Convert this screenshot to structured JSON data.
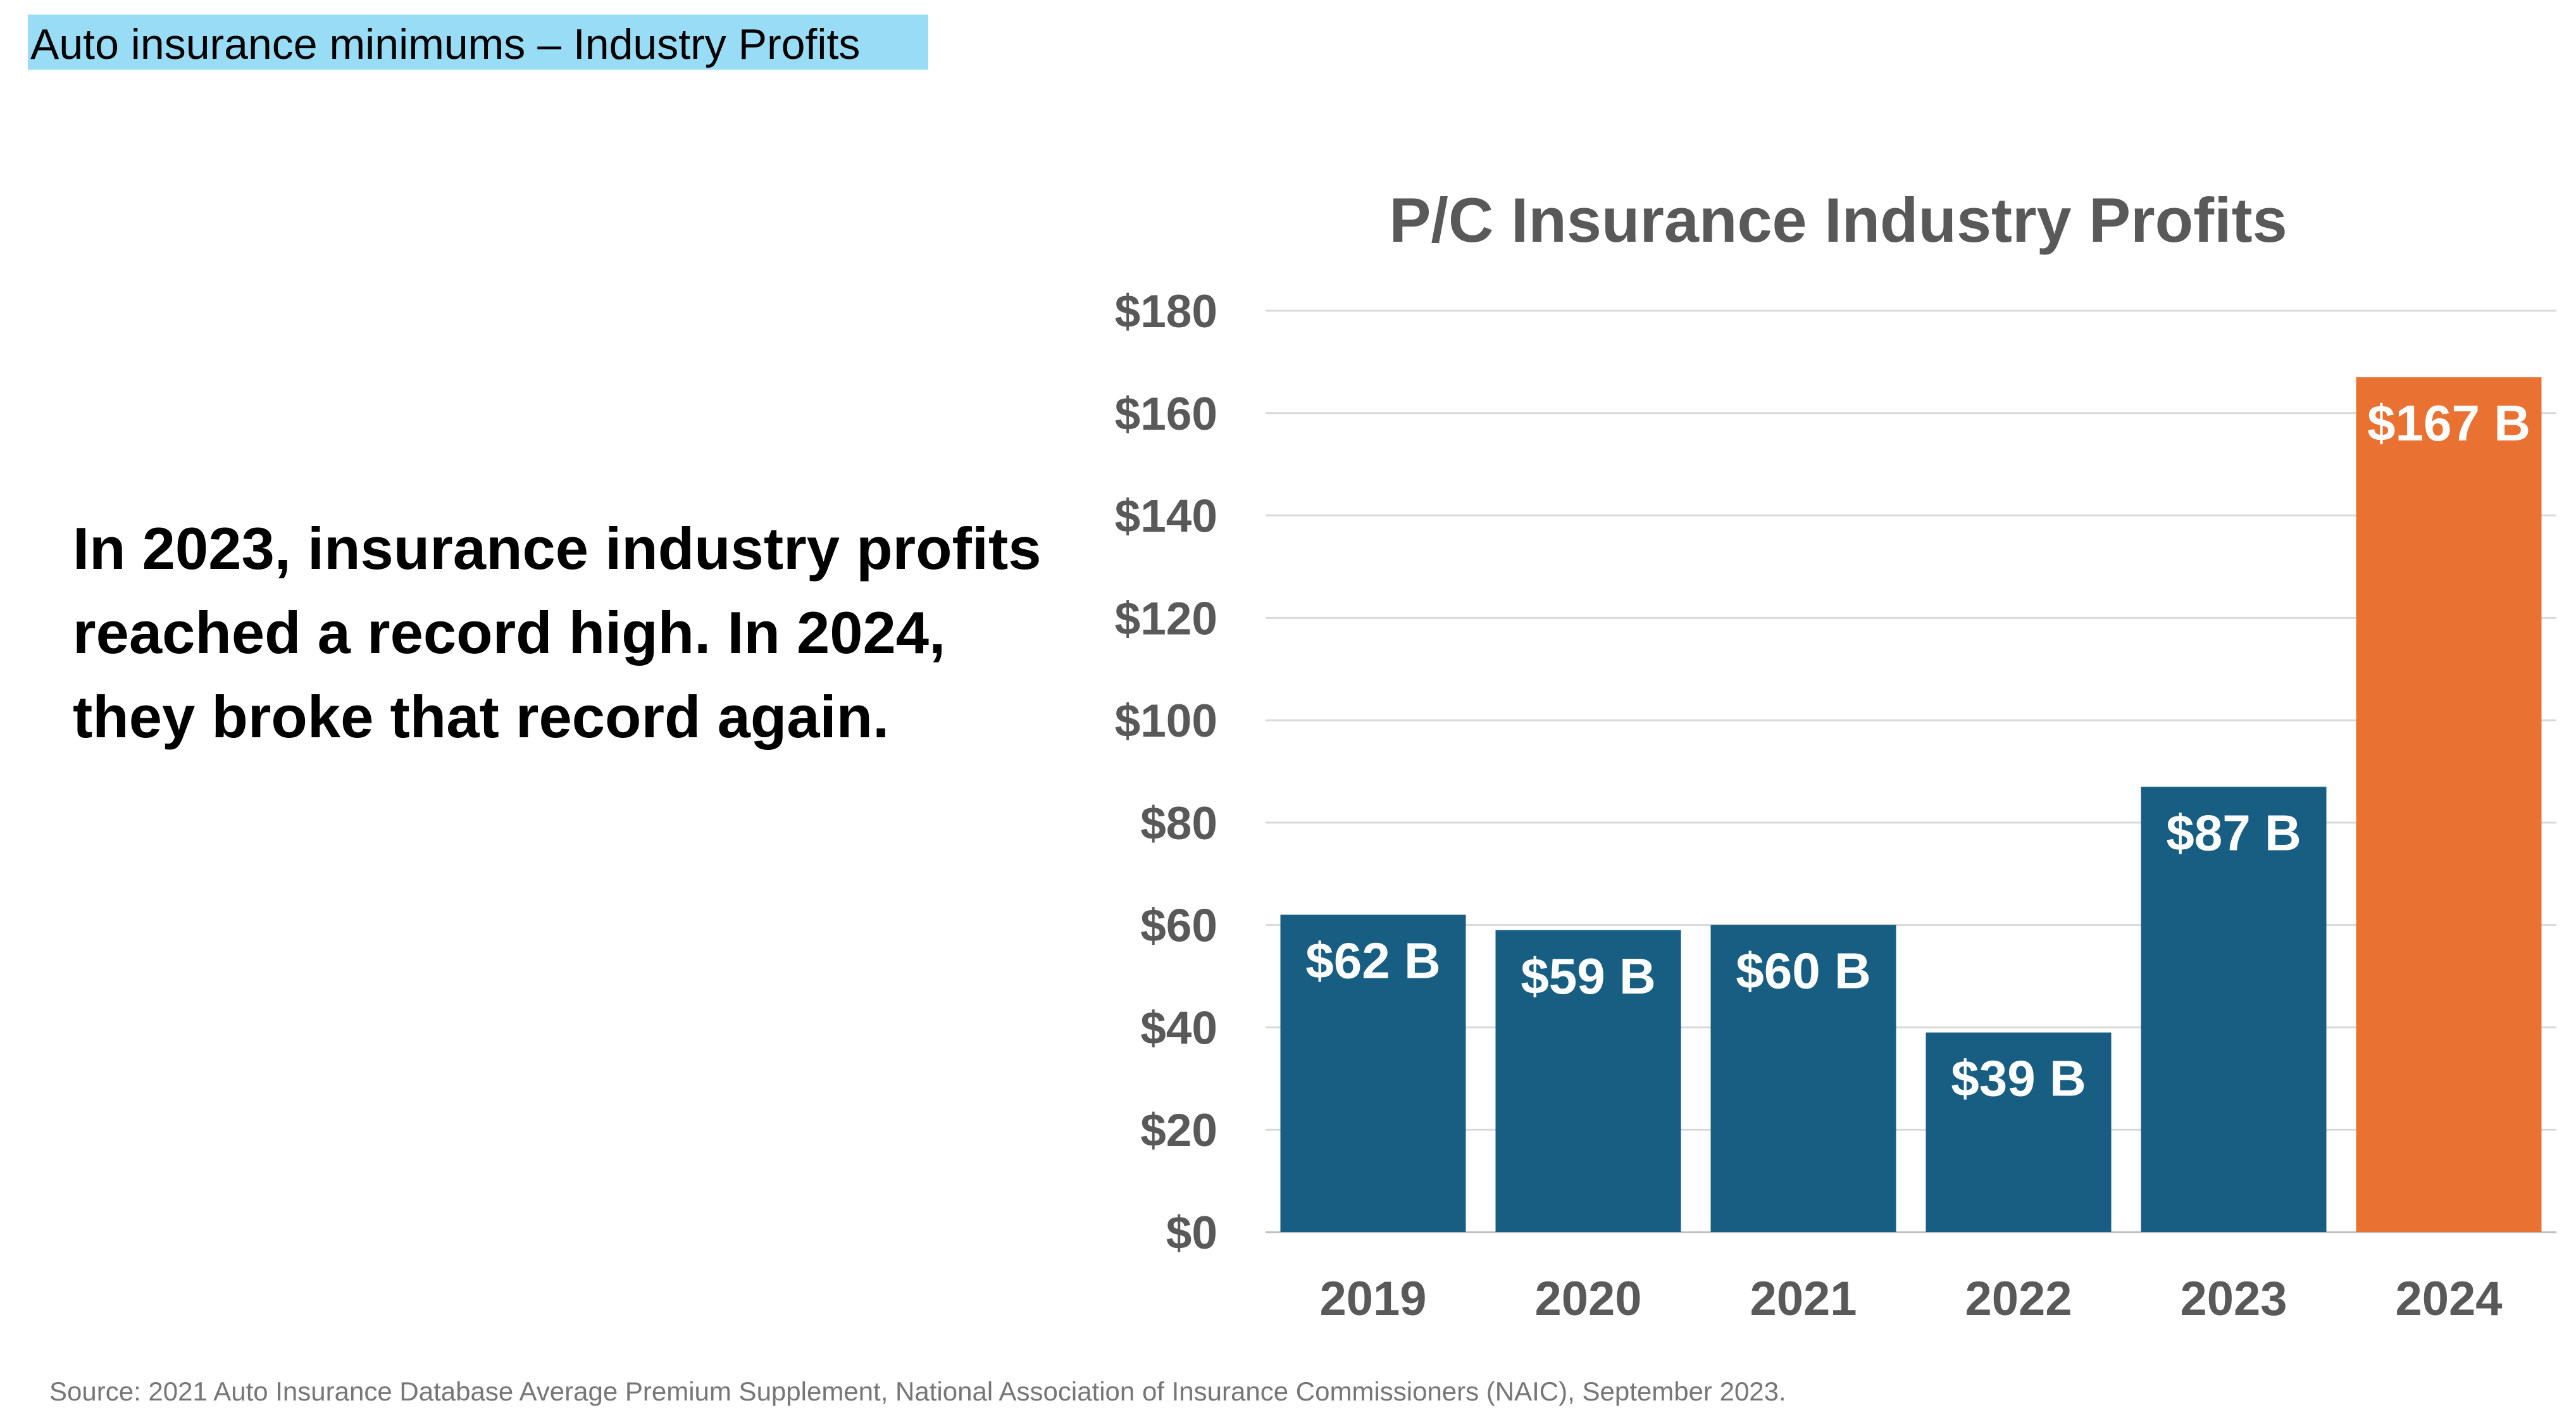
{
  "header": {
    "title": "Auto insurance minimums – Industry Profits"
  },
  "body_text": "In 2023, insurance industry profits reached a record high. In 2024, they broke that record again.",
  "source": "Source: 2021 Auto Insurance Database Average Premium Supplement, National Association of Insurance Commissioners (NAIC), September 2023.",
  "chart_data": {
    "type": "bar",
    "title": "P/C Insurance Industry Profits",
    "categories": [
      "2019",
      "2020",
      "2021",
      "2022",
      "2023",
      "2024"
    ],
    "values": [
      62,
      59,
      60,
      39,
      87,
      167
    ],
    "data_labels": [
      "$62 B",
      "$59 B",
      "$60 B",
      "$39 B",
      "$87 B",
      "$167 B"
    ],
    "ylim": [
      0,
      180
    ],
    "yticks": [
      0,
      20,
      40,
      60,
      80,
      100,
      120,
      140,
      160,
      180
    ],
    "ytick_labels": [
      "$0",
      "$20",
      "$40",
      "$60",
      "$80",
      "$100",
      "$120",
      "$140",
      "$160",
      "$180"
    ],
    "xlabel": "",
    "ylabel": "",
    "grid": true,
    "colors": {
      "default": "#175e82",
      "highlight": "#e97132"
    },
    "highlight_category": "2024"
  }
}
